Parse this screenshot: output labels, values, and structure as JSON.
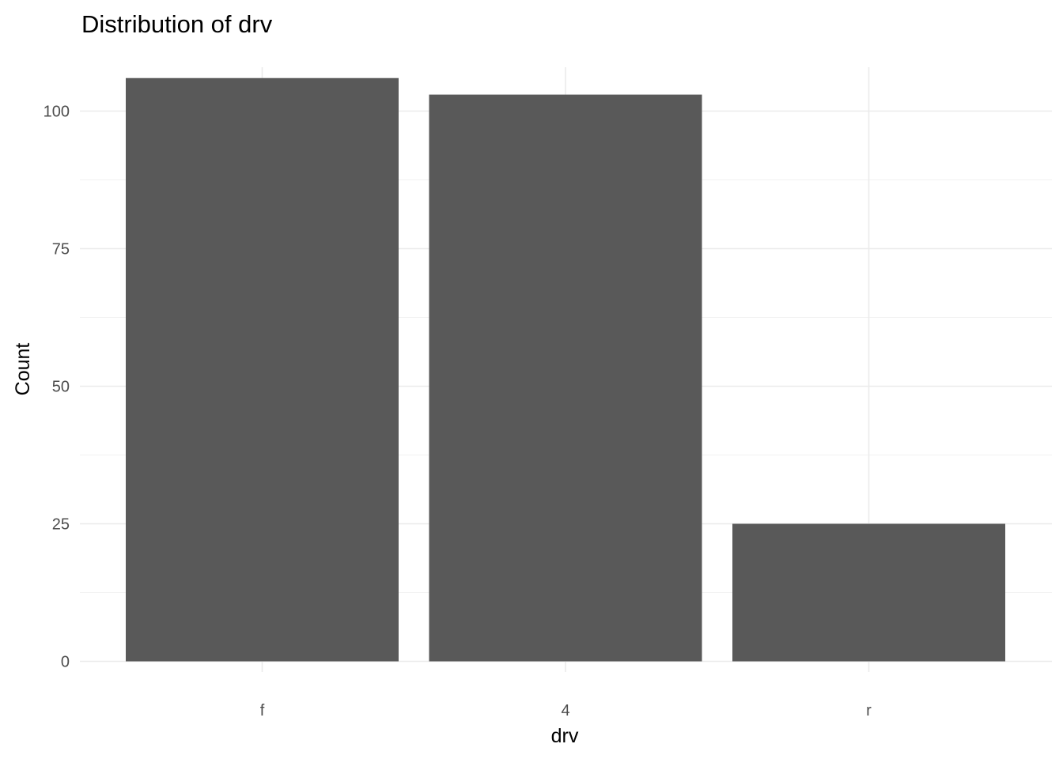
{
  "chart_data": {
    "type": "bar",
    "title": "Distribution of drv",
    "xlabel": "drv",
    "ylabel": "Count",
    "categories": [
      "f",
      "4",
      "r"
    ],
    "values": [
      106,
      103,
      25
    ],
    "ylim": [
      0,
      106
    ],
    "yticks": [
      0,
      25,
      50,
      75,
      100
    ],
    "y_minor_ticks": [
      12.5,
      37.5,
      62.5,
      87.5
    ],
    "grid": true,
    "legend": "none"
  },
  "colors": {
    "bar": "#595959",
    "grid_major": "#ebebeb",
    "grid_minor": "#f2f2f2",
    "tick_text": "#4d4d4d",
    "text": "#000000",
    "background": "#ffffff"
  }
}
